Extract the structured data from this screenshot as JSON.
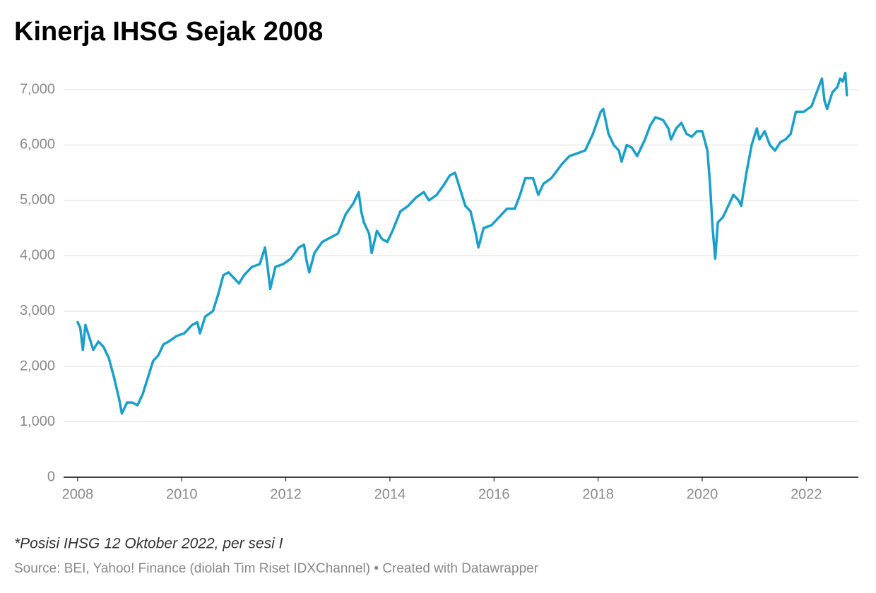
{
  "chart_data": {
    "type": "line",
    "title": "Kinerja IHSG Sejak 2008",
    "note": "*Posisi IHSG 12 Oktober 2022, per sesi I",
    "source": "Source: BEI, Yahoo! Finance (diolah Tim Riset IDXChannel) • Created with Datawrapper",
    "color": "#1a9fcb",
    "grid": true,
    "x": [
      2008.0,
      2008.05,
      2008.1,
      2008.15,
      2008.2,
      2008.3,
      2008.4,
      2008.5,
      2008.6,
      2008.7,
      2008.8,
      2008.85,
      2008.95,
      2009.05,
      2009.15,
      2009.25,
      2009.35,
      2009.45,
      2009.55,
      2009.65,
      2009.75,
      2009.9,
      2010.05,
      2010.2,
      2010.3,
      2010.35,
      2010.45,
      2010.6,
      2010.7,
      2010.8,
      2010.9,
      2011.0,
      2011.1,
      2011.2,
      2011.35,
      2011.5,
      2011.6,
      2011.65,
      2011.7,
      2011.8,
      2011.95,
      2012.1,
      2012.25,
      2012.35,
      2012.4,
      2012.45,
      2012.55,
      2012.7,
      2012.9,
      2013.0,
      2013.15,
      2013.3,
      2013.4,
      2013.45,
      2013.5,
      2013.6,
      2013.65,
      2013.75,
      2013.85,
      2013.95,
      2014.05,
      2014.2,
      2014.35,
      2014.5,
      2014.65,
      2014.75,
      2014.9,
      2015.05,
      2015.15,
      2015.25,
      2015.35,
      2015.45,
      2015.55,
      2015.65,
      2015.7,
      2015.8,
      2015.95,
      2016.1,
      2016.25,
      2016.4,
      2016.5,
      2016.6,
      2016.75,
      2016.85,
      2016.95,
      2017.1,
      2017.3,
      2017.45,
      2017.6,
      2017.75,
      2017.9,
      2018.05,
      2018.1,
      2018.2,
      2018.3,
      2018.4,
      2018.45,
      2018.55,
      2018.65,
      2018.75,
      2018.9,
      2019.0,
      2019.1,
      2019.25,
      2019.35,
      2019.4,
      2019.5,
      2019.6,
      2019.7,
      2019.8,
      2019.9,
      2020.0,
      2020.1,
      2020.15,
      2020.2,
      2020.25,
      2020.3,
      2020.4,
      2020.5,
      2020.6,
      2020.7,
      2020.75,
      2020.85,
      2020.95,
      2021.05,
      2021.1,
      2021.2,
      2021.3,
      2021.4,
      2021.5,
      2021.6,
      2021.7,
      2021.8,
      2021.95,
      2022.1,
      2022.2,
      2022.3,
      2022.35,
      2022.4,
      2022.5,
      2022.6,
      2022.65,
      2022.7,
      2022.75,
      2022.78
    ],
    "values": [
      2800,
      2700,
      2300,
      2750,
      2600,
      2300,
      2450,
      2350,
      2150,
      1800,
      1400,
      1150,
      1350,
      1350,
      1300,
      1500,
      1800,
      2100,
      2200,
      2400,
      2450,
      2550,
      2600,
      2750,
      2800,
      2600,
      2900,
      3000,
      3300,
      3650,
      3700,
      3600,
      3500,
      3650,
      3800,
      3850,
      4150,
      3800,
      3400,
      3800,
      3850,
      3950,
      4150,
      4200,
      3900,
      3700,
      4050,
      4250,
      4350,
      4400,
      4750,
      4950,
      5150,
      4800,
      4600,
      4400,
      4050,
      4450,
      4300,
      4250,
      4450,
      4800,
      4900,
      5050,
      5150,
      5000,
      5100,
      5300,
      5450,
      5500,
      5200,
      4900,
      4800,
      4400,
      4150,
      4500,
      4550,
      4700,
      4850,
      4850,
      5100,
      5400,
      5400,
      5100,
      5300,
      5400,
      5650,
      5800,
      5850,
      5900,
      6200,
      6600,
      6650,
      6200,
      6000,
      5900,
      5700,
      6000,
      5950,
      5800,
      6100,
      6350,
      6500,
      6450,
      6300,
      6100,
      6300,
      6400,
      6200,
      6150,
      6250,
      6250,
      5900,
      5300,
      4500,
      3950,
      4600,
      4700,
      4900,
      5100,
      5000,
      4900,
      5500,
      6000,
      6300,
      6100,
      6250,
      6000,
      5900,
      6050,
      6100,
      6200,
      6600,
      6600,
      6700,
      6950,
      7200,
      6800,
      6650,
      6950,
      7050,
      7200,
      7150,
      7300,
      6900
    ],
    "xlim": [
      2007.73,
      2023.0
    ],
    "xticks": [
      2008,
      2010,
      2012,
      2014,
      2016,
      2018,
      2020,
      2022
    ],
    "ylim": [
      0,
      7000
    ],
    "yticks": [
      0,
      {
        "value": 1000,
        "label": "1,000"
      },
      {
        "value": 2000,
        "label": "2,000"
      },
      {
        "value": 3000,
        "label": "3,000"
      },
      {
        "value": 4000,
        "label": "4,000"
      },
      {
        "value": 5000,
        "label": "5,000"
      },
      {
        "value": 6000,
        "label": "6,000"
      },
      {
        "value": 7000,
        "label": "7,000"
      }
    ]
  }
}
